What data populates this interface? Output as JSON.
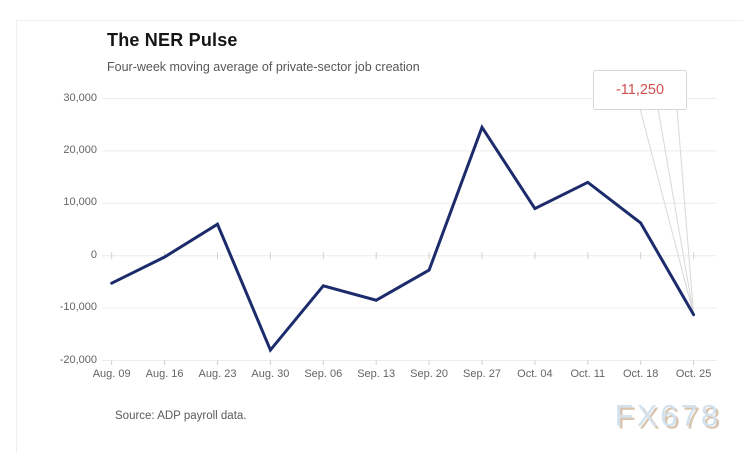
{
  "page": {
    "title": "The NER Pulse",
    "subtitle": "Four-week moving average of private-sector job creation",
    "source": "Source: ADP payroll data.",
    "watermark": "FX678"
  },
  "colors": {
    "line": "#1b2b6b",
    "grid": "#ececec",
    "tick": "#cfcfcf",
    "axis_text": "#646464",
    "annotation_text": "#d05050",
    "callout_border": "#d6d6d6",
    "pointer": "#d9d9d9"
  },
  "chart_data": {
    "type": "line",
    "title": "The NER Pulse",
    "subtitle": "Four-week moving average of private-sector job creation",
    "xlabel": "",
    "ylabel": "",
    "categories": [
      "Aug. 09",
      "Aug. 16",
      "Aug. 23",
      "Aug. 30",
      "Sep. 06",
      "Sep. 13",
      "Sep. 20",
      "Sep. 27",
      "Oct. 04",
      "Oct. 11",
      "Oct. 18",
      "Oct. 25"
    ],
    "values": [
      -5250,
      -250,
      6000,
      -18000,
      -5750,
      -8500,
      -2750,
      24500,
      9000,
      14000,
      6250,
      -11250
    ],
    "ylim": [
      -20000,
      30000
    ],
    "yticks": [
      {
        "value": 30000,
        "label": "30,000"
      },
      {
        "value": 20000,
        "label": "20,000"
      },
      {
        "value": 10000,
        "label": "10,000"
      },
      {
        "value": 0,
        "label": "0"
      },
      {
        "value": -10000,
        "label": "-10,000"
      },
      {
        "value": -20000,
        "label": "-20,000"
      }
    ],
    "grid": "horizontal",
    "legend": "none",
    "annotation": {
      "label": "-11,250",
      "index": 11,
      "value": -11250
    },
    "source": "Source: ADP payroll data."
  }
}
